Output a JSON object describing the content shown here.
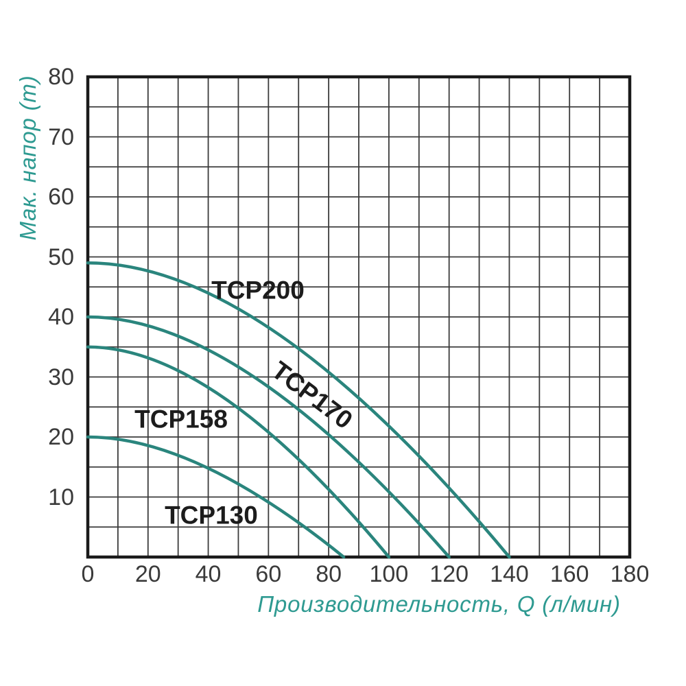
{
  "chart_data": {
    "type": "line",
    "title": "",
    "xlabel": "Производительность, Q (л/мин)",
    "ylabel": "Мак. напор (m)",
    "xlim": [
      0,
      180
    ],
    "ylim": [
      0,
      80
    ],
    "x_ticks": [
      0,
      20,
      40,
      60,
      80,
      100,
      120,
      140,
      160,
      180
    ],
    "y_ticks": [
      10,
      20,
      30,
      40,
      50,
      60,
      70,
      80
    ],
    "x_grid_step": 10,
    "y_grid_step": 5,
    "grid": true,
    "legend_position": "labels-on-curves",
    "curve_control_ratio": 0.42,
    "series": [
      {
        "name": "TCP200",
        "head_at_zero_flow_m": 49,
        "max_flow_l_min": 140,
        "points": [
          [
            0,
            49
          ],
          [
            20,
            47.7
          ],
          [
            40,
            44.0
          ],
          [
            60,
            38.2
          ],
          [
            80,
            30.8
          ],
          [
            100,
            21.8
          ],
          [
            120,
            11.5
          ],
          [
            140,
            0
          ]
        ],
        "label": {
          "q": 56.5,
          "h": 44.5,
          "angle_deg": 0
        }
      },
      {
        "name": "TCP170",
        "head_at_zero_flow_m": 40,
        "max_flow_l_min": 120,
        "points": [
          [
            0,
            40
          ],
          [
            20,
            38.5
          ],
          [
            40,
            34.5
          ],
          [
            60,
            28.3
          ],
          [
            80,
            20.4
          ],
          [
            100,
            10.8
          ],
          [
            120,
            0
          ]
        ],
        "label": {
          "q": 74.5,
          "h": 27.0,
          "angle_deg": 37
        }
      },
      {
        "name": "TCP158",
        "head_at_zero_flow_m": 35,
        "max_flow_l_min": 100,
        "points": [
          [
            0,
            35
          ],
          [
            20,
            33.2
          ],
          [
            40,
            28.2
          ],
          [
            60,
            20.8
          ],
          [
            80,
            11.3
          ],
          [
            100,
            0
          ]
        ],
        "label": {
          "q": 31.0,
          "h": 23.0,
          "angle_deg": 0
        }
      },
      {
        "name": "TCP130",
        "head_at_zero_flow_m": 20,
        "max_flow_l_min": 85,
        "points": [
          [
            0,
            20
          ],
          [
            20,
            18.6
          ],
          [
            40,
            14.8
          ],
          [
            60,
            9.1
          ],
          [
            80,
            2.0
          ],
          [
            85,
            0
          ]
        ],
        "label": {
          "q": 41.0,
          "h": 7.0,
          "angle_deg": 0
        }
      }
    ],
    "colors": {
      "curve": "#2A857D",
      "axis_title": "#2E9A91",
      "tick_label": "#3A3A3A",
      "curve_label": "#1C1C1C",
      "grid_line": "#3B3B3B",
      "border": "#1A1A1A",
      "background": "#FFFFFF"
    }
  }
}
